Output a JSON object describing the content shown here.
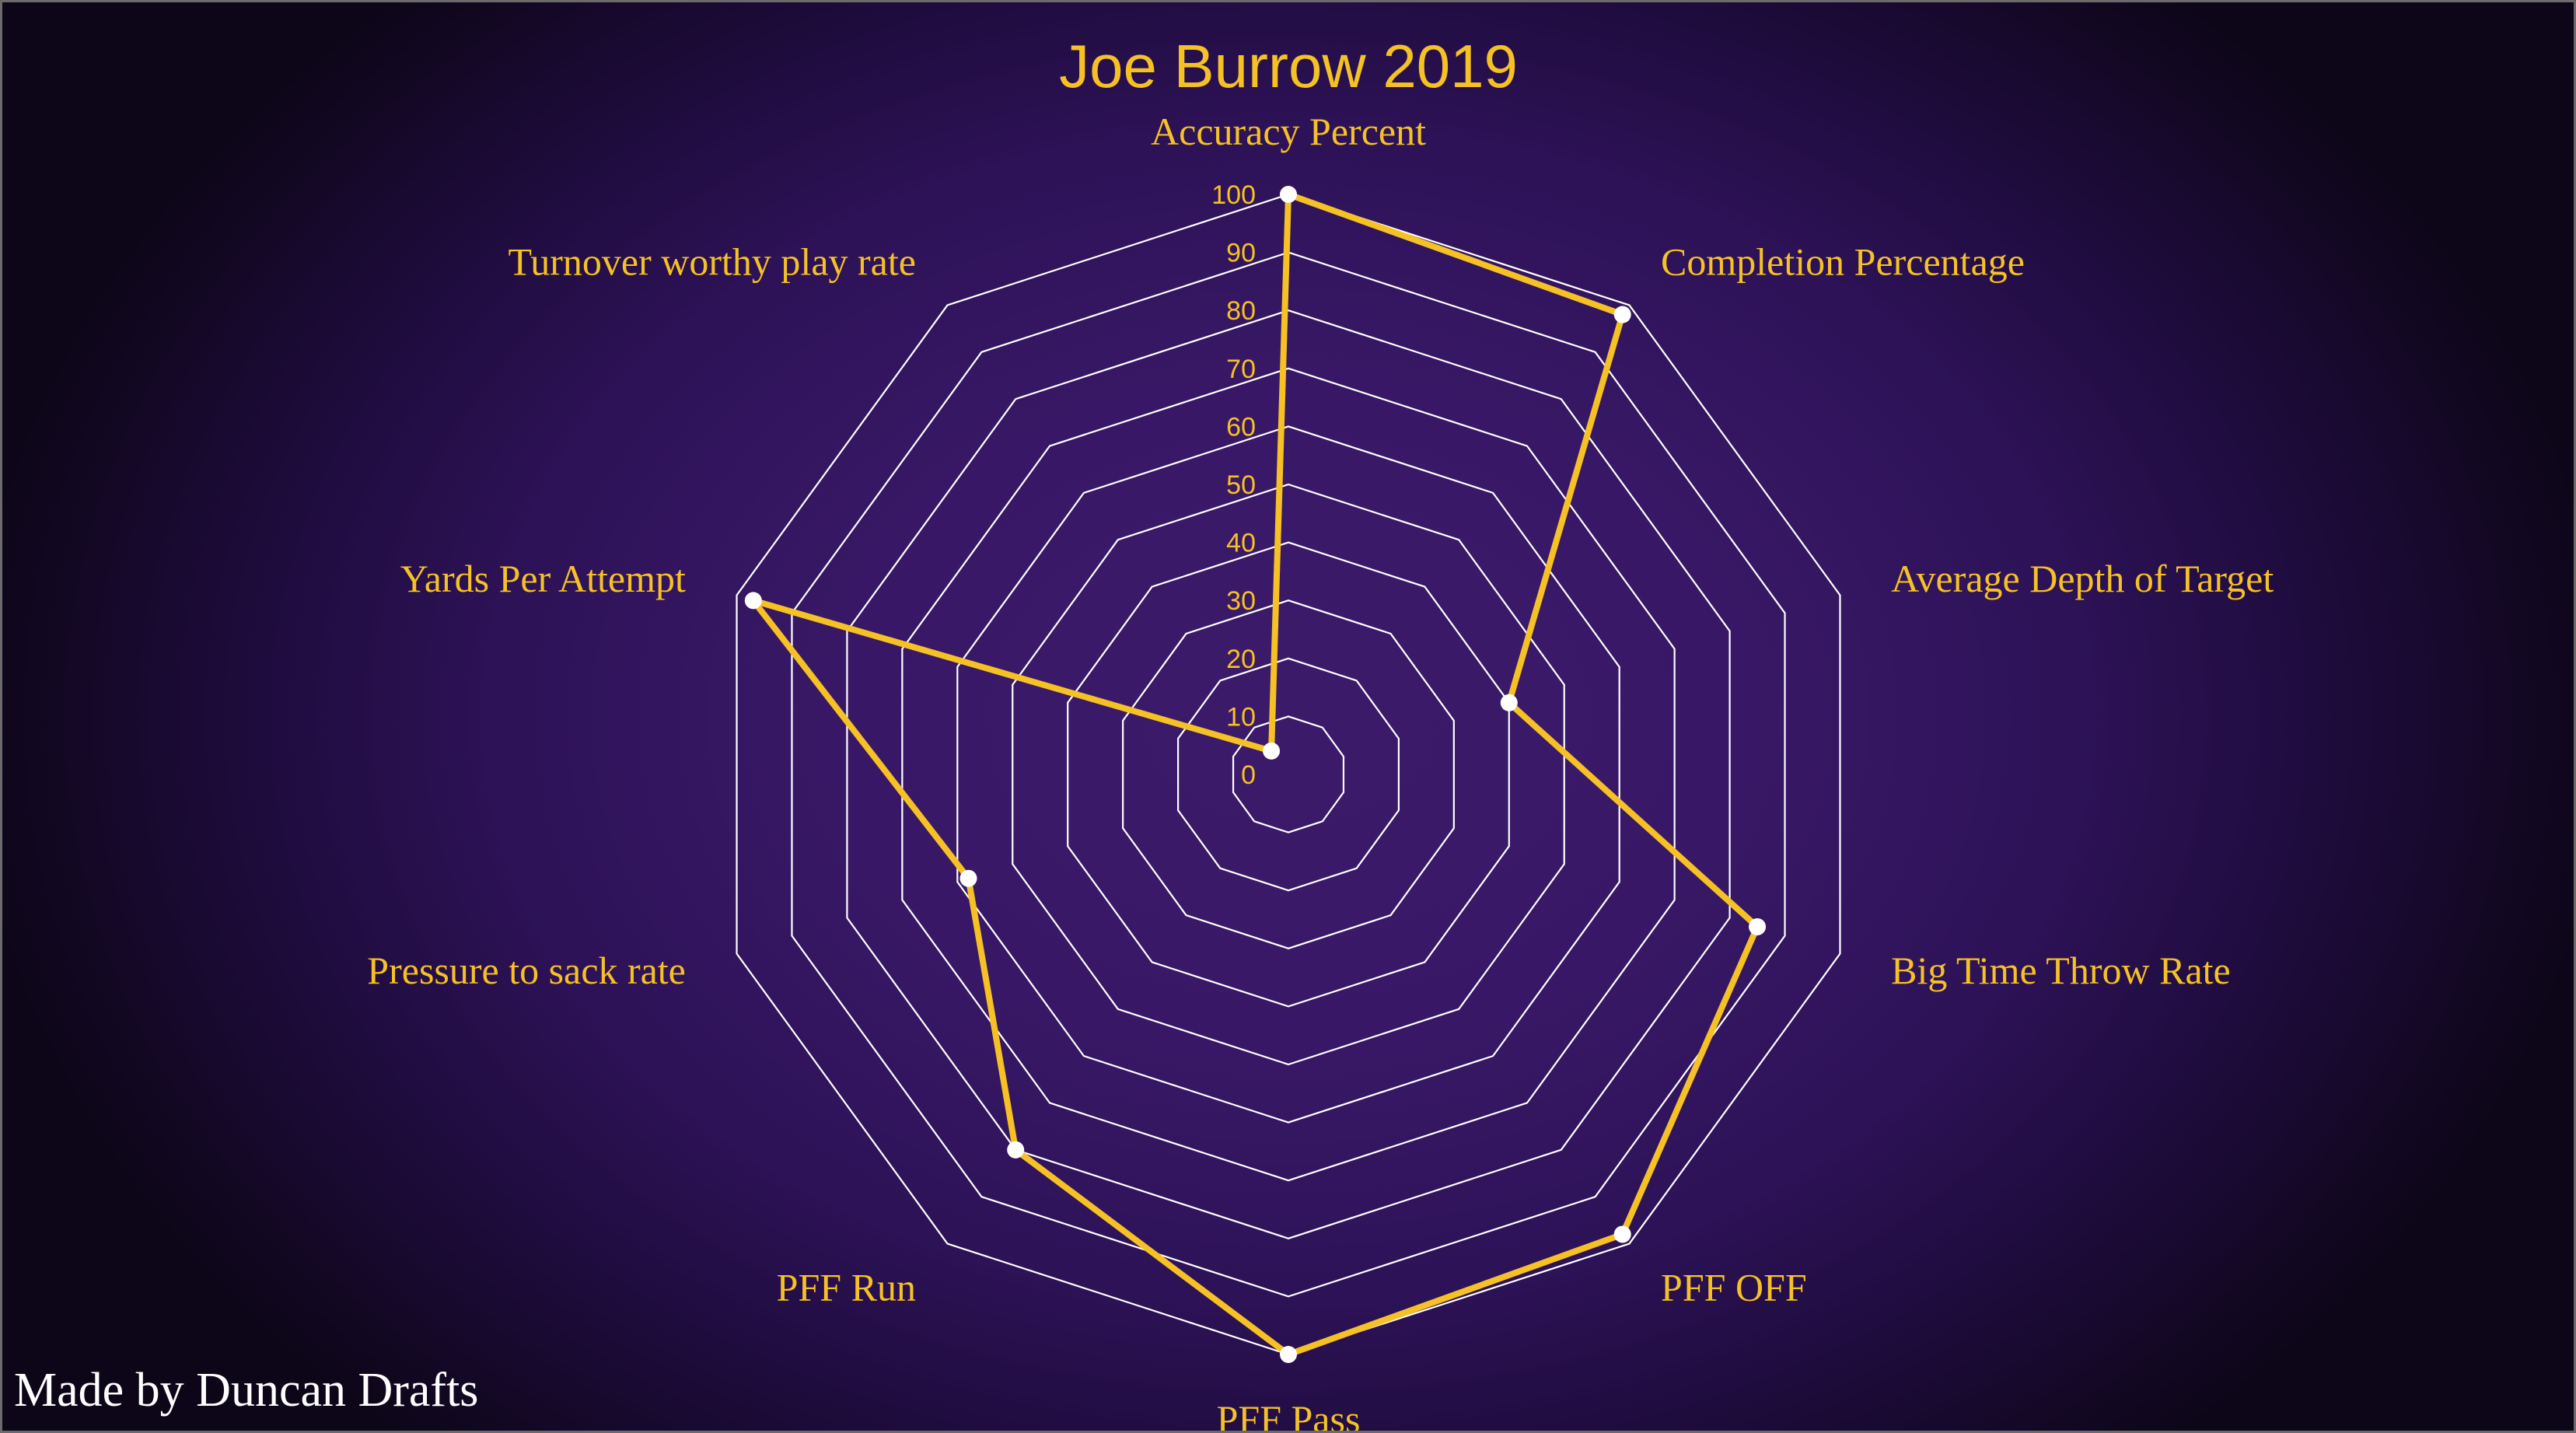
{
  "chart_data": {
    "type": "radar",
    "title": "Joe Burrow 2019",
    "axes": [
      "Accuracy Percent",
      "Completion Percentage",
      "Average Depth of Target",
      "Big Time Throw Rate",
      "PFF OFF",
      "PFF Pass",
      "PFF Run",
      "Pressure to sack rate",
      "Yards Per Attempt",
      "Turnover worthy play rate"
    ],
    "series": [
      {
        "values": [
          100,
          98,
          40,
          85,
          98,
          100,
          80,
          58,
          97,
          5
        ]
      }
    ],
    "rlim": [
      0,
      100
    ],
    "rticks": [
      "0",
      "10",
      "20",
      "30",
      "40",
      "50",
      "60",
      "70",
      "80",
      "90",
      "100"
    ],
    "grid": true,
    "colors": {
      "series": "#f5c125",
      "grid": "#ffffff",
      "marker": "#ffffff",
      "text": "#f5c125",
      "background": "#381866"
    }
  },
  "footer": {
    "credit": "Made by Duncan Drafts"
  }
}
